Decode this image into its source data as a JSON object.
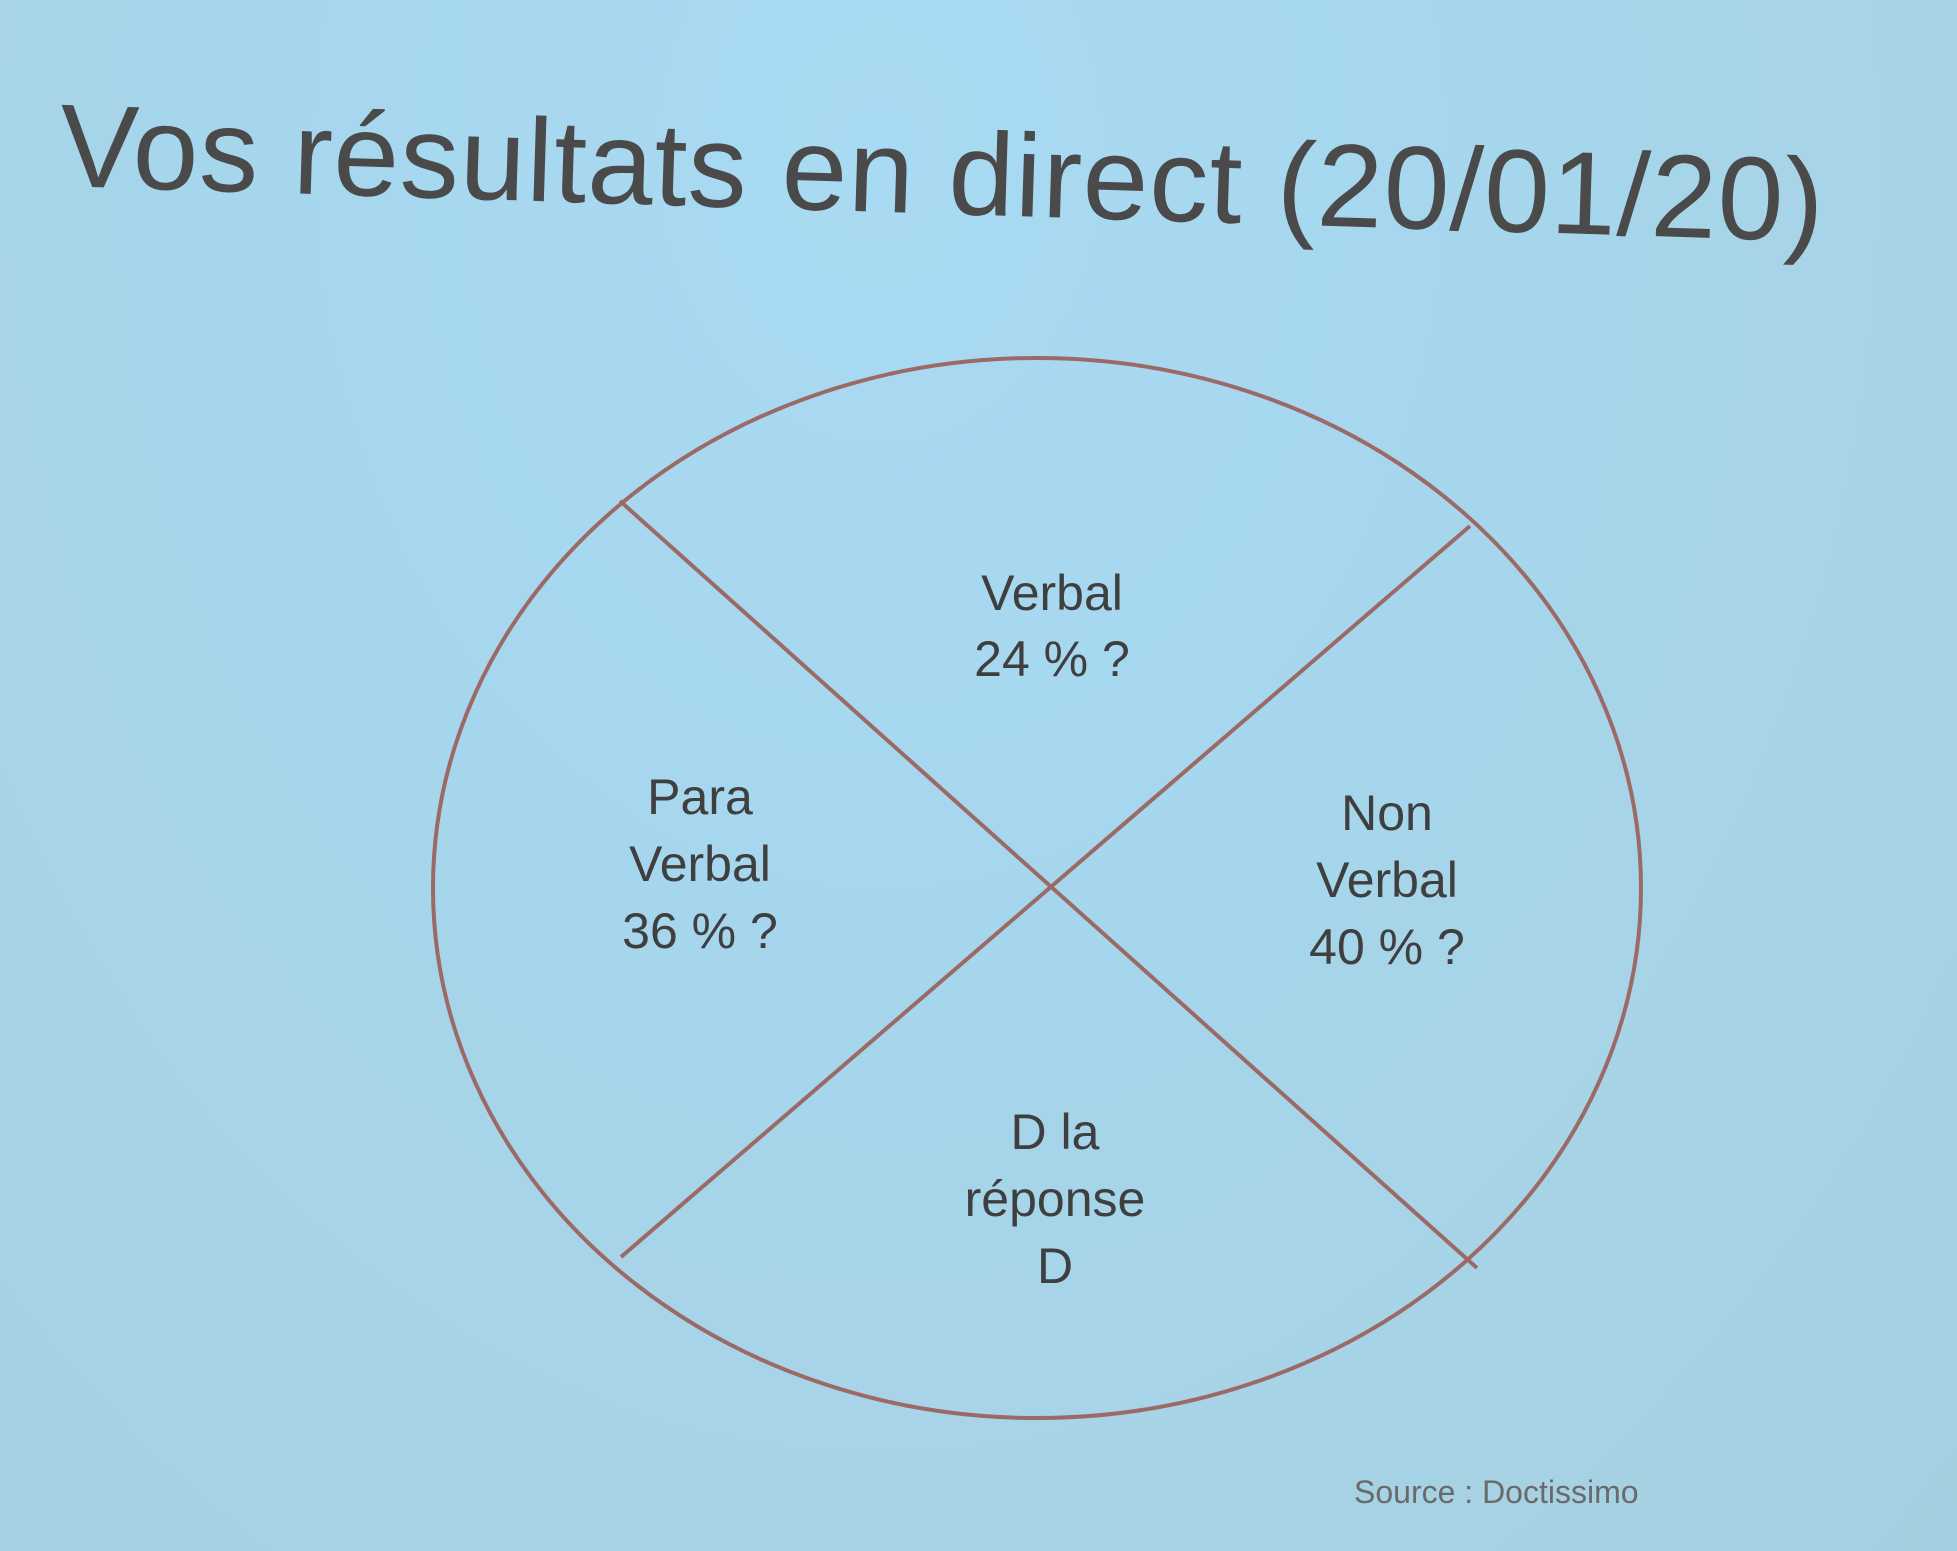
{
  "title": "Vos résultats en direct (20/01/20)",
  "colors": {
    "background": "#a7d5eb",
    "circle_stroke": "#9c6a66",
    "text": "#3f3f3f"
  },
  "segments": {
    "top": [
      "Verbal",
      "24 % ?"
    ],
    "left": [
      "Para",
      "Verbal",
      "36 % ?"
    ],
    "right": [
      "Non",
      "Verbal",
      "40 % ?"
    ],
    "bottom": [
      "D la",
      "réponse",
      "D"
    ]
  },
  "source": "Source : Doctissimo"
}
